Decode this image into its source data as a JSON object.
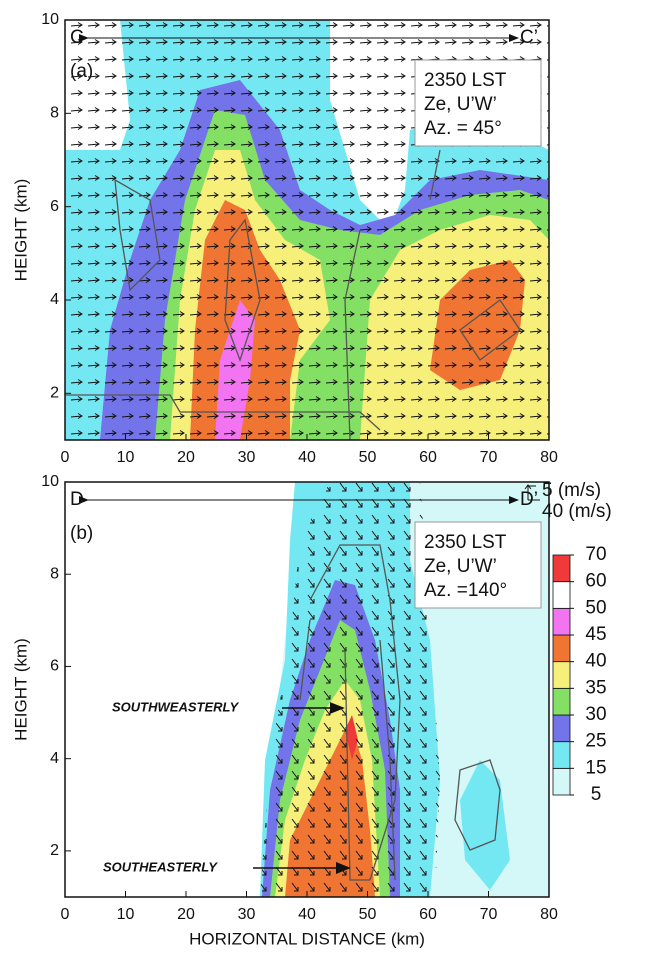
{
  "chart_data": [
    {
      "type": "contour",
      "panel_label": "(a)",
      "section_start": "C",
      "section_end": "C’",
      "info": [
        "2350 LST",
        "Ze, U’W’",
        "Az. = 45°"
      ],
      "ylabel": "HEIGHT (km)",
      "xlim": [
        0,
        80
      ],
      "ylim": [
        1,
        10
      ],
      "xticks": [
        0,
        10,
        20,
        30,
        40,
        50,
        60,
        70,
        80
      ],
      "yticks": [
        2,
        4,
        6,
        8,
        10
      ]
    },
    {
      "type": "contour",
      "panel_label": "(b)",
      "section_start": "D",
      "section_end": "D’",
      "info": [
        "2350 LST",
        "Ze, U’W’",
        "Az. =140°"
      ],
      "ylabel": "HEIGHT (km)",
      "xlabel": "HORIZONTAL DISTANCE (km)",
      "annotations": [
        "SOUTHWEASTERLY",
        "SOUTHEASTERLY"
      ],
      "vector_scale": [
        "5 (m/s)",
        "40 (m/s)"
      ],
      "xlim": [
        0,
        80
      ],
      "ylim": [
        1,
        10
      ],
      "xticks": [
        0,
        10,
        20,
        30,
        40,
        50,
        60,
        70,
        80
      ],
      "yticks": [
        2,
        4,
        6,
        8,
        10
      ],
      "colorbar": {
        "levels": [
          5,
          15,
          25,
          30,
          35,
          40,
          45,
          50,
          60,
          70
        ],
        "colors": [
          "#d4f8f8",
          "#74e8f2",
          "#7474ea",
          "#84e064",
          "#f6f07a",
          "#f07432",
          "#f274f0",
          "#ffffff",
          "#f03a3a"
        ]
      }
    }
  ]
}
